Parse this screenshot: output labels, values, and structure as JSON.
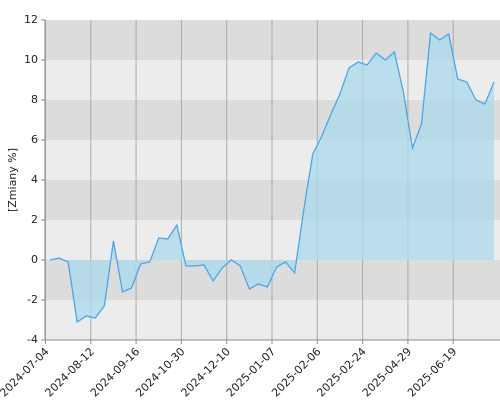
{
  "chart_data": {
    "type": "area",
    "y_label": "[Zmiany %]",
    "categories": [
      "2024-07-04",
      null,
      null,
      null,
      null,
      "2024-08-12",
      null,
      null,
      null,
      null,
      "2024-09-16",
      null,
      null,
      null,
      null,
      "2024-10-30",
      null,
      null,
      null,
      null,
      "2024-12-10",
      null,
      null,
      null,
      null,
      "2025-01-07",
      null,
      null,
      null,
      null,
      "2025-02-06",
      null,
      null,
      null,
      null,
      "2025-02-24",
      null,
      null,
      null,
      null,
      "2025-04-29",
      null,
      null,
      null,
      null,
      "2025-06-19",
      null,
      null,
      null,
      null
    ],
    "values": [
      0,
      0.1,
      -0.1,
      -3.1,
      -2.8,
      -2.9,
      -2.3,
      0.95,
      -1.6,
      -1.4,
      -0.2,
      -0.1,
      1.1,
      1.05,
      1.75,
      -0.3,
      -0.3,
      -0.25,
      -1.05,
      -0.4,
      0,
      -0.3,
      -1.45,
      -1.2,
      -1.35,
      -0.35,
      -0.1,
      -0.65,
      2.5,
      5.3,
      6.2,
      7.3,
      8.3,
      9.6,
      9.9,
      9.75,
      10.35,
      10.0,
      10.4,
      8.4,
      5.6,
      6.8,
      11.35,
      11.0,
      11.3,
      9.05,
      8.9,
      8.0,
      7.8,
      8.9
    ],
    "color": "#4da6e8",
    "fill_color": "#a9d9ec",
    "ylim": [
      -4,
      12
    ],
    "yticks": [
      -4,
      -2,
      0,
      2,
      4,
      6,
      8,
      10,
      12
    ],
    "grid": true
  }
}
